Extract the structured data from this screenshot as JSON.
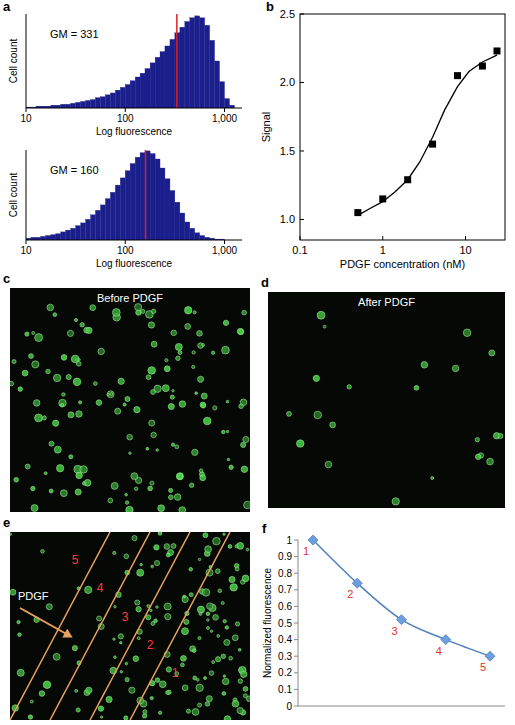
{
  "chart_data": [
    {
      "type": "histogram",
      "panel": "a",
      "annotation": {
        "label": "GM = 331",
        "value": 331
      },
      "x_label": "Log fluorescence",
      "y_label": "Cell count",
      "log": "x",
      "color": "#1b1f8c",
      "tick_labels": "x",
      "xlim": [
        10,
        1500
      ],
      "xticks": [
        10,
        100,
        {
          "value": 1000,
          "label": "1,000"
        }
      ],
      "ylim": [
        0,
        100
      ],
      "bins": [
        10,
        11.2,
        12.6,
        14.1,
        15.8,
        17.8,
        20,
        22.4,
        25.1,
        28.2,
        31.6,
        35.5,
        39.8,
        44.7,
        50.1,
        56.2,
        63.1,
        70.8,
        79.4,
        89.1,
        100,
        112,
        126,
        141,
        158,
        178,
        200,
        224,
        251,
        282,
        316,
        355,
        398,
        447,
        501,
        562,
        631,
        708,
        794,
        891,
        1000,
        1122,
        1259
      ],
      "counts": [
        1,
        1,
        2,
        2,
        2,
        3,
        3,
        4,
        4,
        5,
        6,
        7,
        8,
        9,
        11,
        12,
        14,
        16,
        19,
        22,
        25,
        29,
        33,
        37,
        42,
        48,
        54,
        60,
        66,
        73,
        80,
        86,
        92,
        96,
        98,
        96,
        88,
        72,
        50,
        28,
        10,
        3
      ]
    },
    {
      "type": "histogram",
      "annotation": {
        "label": "GM = 160",
        "value": 160
      },
      "x_label": "Log fluorescence",
      "y_label": "Cell count",
      "log": "x",
      "color": "#1b1f8c",
      "tick_labels": "x",
      "xlim": [
        10,
        1500
      ],
      "xticks": [
        10,
        100,
        {
          "value": 1000,
          "label": "1,000"
        }
      ],
      "ylim": [
        0,
        100
      ],
      "bins": [
        10,
        11.2,
        12.6,
        14.1,
        15.8,
        17.8,
        20,
        22.4,
        25.1,
        28.2,
        31.6,
        35.5,
        39.8,
        44.7,
        50.1,
        56.2,
        63.1,
        70.8,
        79.4,
        89.1,
        100,
        112,
        126,
        141,
        158,
        178,
        200,
        224,
        251,
        282,
        316,
        355,
        398,
        447,
        501,
        562,
        631,
        708,
        794,
        891,
        1000,
        1122,
        1259
      ],
      "counts": [
        2,
        3,
        3,
        4,
        5,
        6,
        7,
        9,
        11,
        13,
        16,
        19,
        23,
        28,
        33,
        39,
        46,
        53,
        61,
        69,
        77,
        85,
        92,
        97,
        99,
        96,
        90,
        80,
        68,
        55,
        42,
        30,
        20,
        13,
        8,
        5,
        3,
        2,
        1,
        1,
        0,
        0
      ]
    },
    {
      "type": "scatter",
      "panel": "b",
      "x_label": "PDGF concentration (nM)",
      "y_label": "Signal",
      "log": "x",
      "xlim": [
        0.1,
        30
      ],
      "xticks": [
        0.1,
        1,
        10
      ],
      "ylim": [
        0.85,
        2.5
      ],
      "yticks": [
        {
          "value": 1,
          "label": "1.0"
        },
        1.5,
        {
          "value": 2,
          "label": "2.0"
        },
        2.5
      ],
      "series": [
        {
          "type": "scatter",
          "marker": "square",
          "color": "#000000",
          "x": [
            0.5,
            1,
            2,
            4,
            8,
            16,
            24
          ],
          "values": [
            1.05,
            1.15,
            1.29,
            1.55,
            2.05,
            2.12,
            2.23
          ]
        },
        {
          "type": "line",
          "color": "#000000",
          "x": [
            0.5,
            0.7,
            1,
            1.4,
            2,
            2.8,
            4,
            5.6,
            8,
            11,
            16,
            24
          ],
          "values": [
            1.03,
            1.08,
            1.13,
            1.2,
            1.29,
            1.42,
            1.6,
            1.8,
            1.97,
            2.08,
            2.15,
            2.2
          ]
        }
      ]
    },
    {
      "type": "image",
      "panel": "c",
      "title": "Before PDGF"
    },
    {
      "type": "image",
      "panel": "d",
      "title": "After PDGF"
    },
    {
      "type": "image",
      "panel": "e",
      "arrow_label": "PDGF",
      "region_labels": [
        "1",
        "2",
        "3",
        "4",
        "5"
      ]
    },
    {
      "type": "line",
      "panel": "f",
      "y_label": "Normalized fluorescence",
      "categories": [
        "1",
        "2",
        "3",
        "4",
        "5"
      ],
      "values": [
        1,
        0.74,
        0.52,
        0.4,
        0.3
      ],
      "color": "#4f81bd",
      "marker": "diamond",
      "tick_labels": "y",
      "ylim": [
        0,
        1
      ],
      "yticks": [
        0,
        0.1,
        0.2,
        0.3,
        0.4,
        0.5,
        0.6,
        0.7,
        0.8,
        0.9,
        1
      ]
    }
  ]
}
